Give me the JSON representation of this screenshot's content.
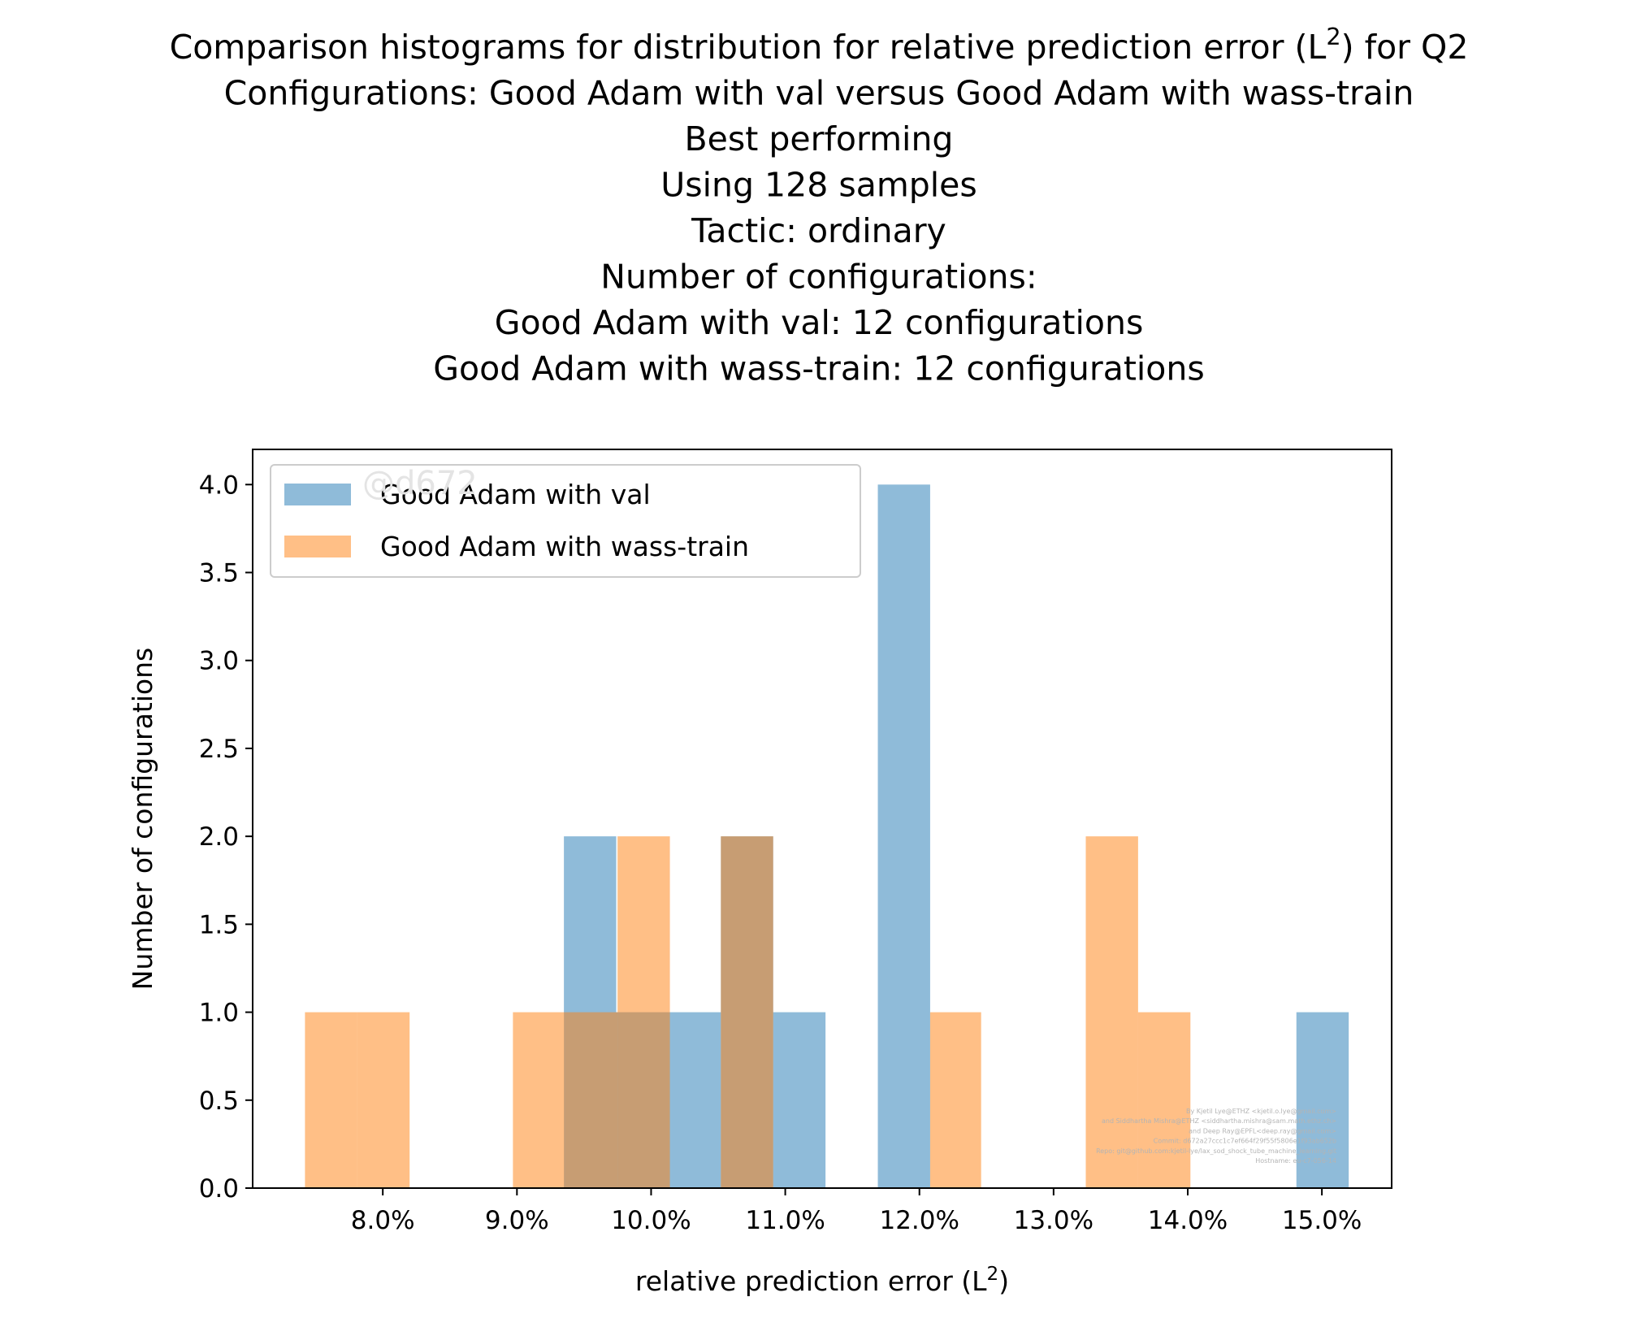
{
  "chart_data": {
    "type": "bar",
    "title_lines": [
      "Comparison histograms for distribution for relative prediction error (L²) for Q2",
      "Configurations: Good Adam with val versus Good Adam with wass-train",
      "Best performing",
      "Using 128 samples",
      "Tactic: ordinary",
      "Number of configurations:",
      "Good Adam with val: 12 configurations",
      "Good Adam with wass-train: 12 configurations"
    ],
    "xlabel": "relative prediction error (L²)",
    "ylabel": "Number of configurations",
    "xlim": [
      7.03,
      15.52
    ],
    "ylim": [
      0,
      4.2
    ],
    "x_ticks": [
      8.0,
      9.0,
      10.0,
      11.0,
      12.0,
      13.0,
      14.0,
      15.0
    ],
    "x_tick_labels": [
      "8.0%",
      "9.0%",
      "10.0%",
      "11.0%",
      "12.0%",
      "13.0%",
      "14.0%",
      "15.0%"
    ],
    "y_ticks": [
      0.0,
      0.5,
      1.0,
      1.5,
      2.0,
      2.5,
      3.0,
      3.5,
      4.0
    ],
    "y_tick_labels": [
      "0.0",
      "0.5",
      "1.0",
      "1.5",
      "2.0",
      "2.5",
      "3.0",
      "3.5",
      "4.0"
    ],
    "grid": false,
    "legend_position": "upper left",
    "series": [
      {
        "name": "Good Adam with val",
        "color": "#1f77b4",
        "alpha": 0.5,
        "bin_edges": [
          9.35,
          9.74,
          10.13,
          10.52,
          10.91,
          11.3,
          11.69,
          12.08,
          12.47,
          12.86,
          13.25,
          13.64,
          14.03,
          14.42,
          14.81,
          15.2
        ],
        "counts": [
          2,
          1,
          1,
          2,
          1,
          0,
          4,
          0,
          0,
          0,
          0,
          0,
          0,
          0,
          1
        ]
      },
      {
        "name": "Good Adam with wass-train",
        "color": "#ff7f0e",
        "alpha": 0.5,
        "bin_edges": [
          7.42,
          7.81,
          8.2,
          8.58,
          8.97,
          9.36,
          9.75,
          10.14,
          10.52,
          10.91,
          11.3,
          11.69,
          12.08,
          12.46,
          12.85,
          13.24,
          13.63,
          14.02
        ],
        "counts": [
          1,
          1,
          0,
          0,
          1,
          1,
          2,
          0,
          2,
          0,
          0,
          0,
          1,
          0,
          0,
          2,
          1
        ]
      }
    ]
  },
  "watermark": "@d672",
  "credits": [
    "By Kjetil Lye@ETHZ <kjetil.o.lye@gmail.com>",
    "and Siddhartha Mishra@ETHZ <siddhartha.mishra@sam.math.ethz.ch>",
    "and Deep Ray@EPFL<deep.ray@gmail.com>",
    "Commit: d672a27ccc1c7ef664f29f55f5806e1f93ab652b",
    "Repo: git@github.com:kjetil-lye/lax_sod_shock_tube_machine_learning.git",
    "Hostname: eu-c7-056-14"
  ]
}
